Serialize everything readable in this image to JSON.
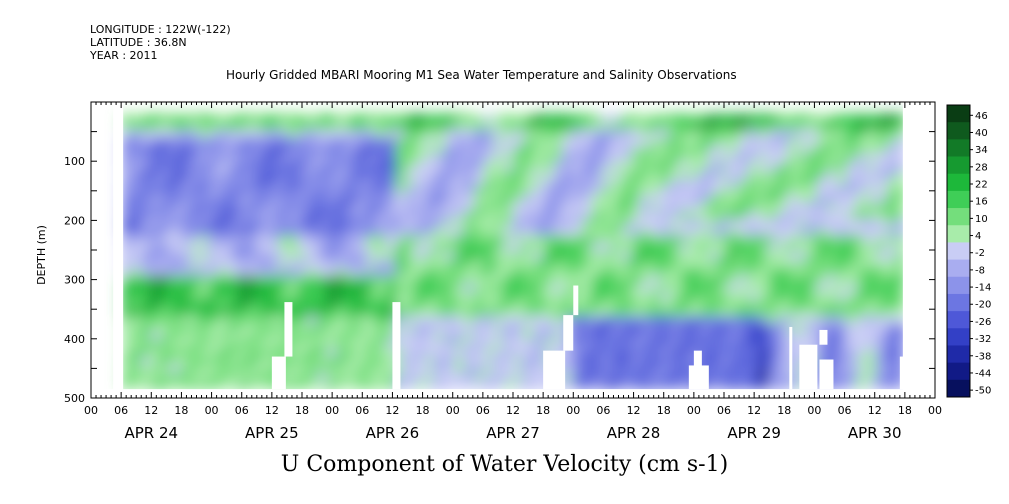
{
  "header": {
    "longitude": "LONGITUDE : 122W(-122)",
    "latitude": "LATITUDE : 36.8N",
    "year": "YEAR : 2011"
  },
  "title": "Hourly Gridded MBARI Mooring M1 Sea Water Temperature and Salinity Observations",
  "bottom_title": "U Component of Water Velocity (cm s-1)",
  "chart_data": {
    "type": "heatmap",
    "title": "Hourly Gridded MBARI Mooring M1 Sea Water Temperature and Salinity Observations",
    "variable": "U Component of Water Velocity (cm s-1)",
    "ylabel": "DEPTH (m)",
    "ylim": [
      500,
      0
    ],
    "y_ticks": [
      100,
      200,
      300,
      400,
      500
    ],
    "x_hour_ticks": [
      "00",
      "06",
      "12",
      "18",
      "00",
      "06",
      "12",
      "18",
      "00",
      "06",
      "12",
      "18",
      "00",
      "06",
      "12",
      "18",
      "00",
      "06",
      "12",
      "18",
      "00",
      "06",
      "12",
      "18",
      "00",
      "06",
      "12",
      "18",
      "00"
    ],
    "x_day_labels": [
      "APR 24",
      "APR 25",
      "APR 26",
      "APR 27",
      "APR 28",
      "APR 29",
      "APR 30"
    ],
    "data_extent": {
      "time_start_hours": 6,
      "time_end_hours": 162,
      "depth_min": 20,
      "depth_max": 485
    },
    "colorbar": {
      "levels": [
        "46",
        "40",
        "34",
        "28",
        "22",
        "16",
        "10",
        "4",
        "-2",
        "-8",
        "-14",
        "-20",
        "-26",
        "-32",
        "-38",
        "-44",
        "-50"
      ],
      "colors": [
        "#0a3d14",
        "#0f5a1e",
        "#127a27",
        "#169a30",
        "#1db83a",
        "#3fce57",
        "#74de7c",
        "#a8ecaa",
        "#c9cdf5",
        "#a9adf0",
        "#8c93ea",
        "#6c76e2",
        "#4e58d8",
        "#3340c6",
        "#1f2aa8",
        "#111a86",
        "#07105e"
      ]
    },
    "columns": [
      {
        "day": 24,
        "upper": "blue",
        "lower": "green",
        "note": "blue 60-300m, green 300-480m"
      },
      {
        "day": 25,
        "upper": "blue",
        "lower": "green",
        "note": "strong blue core near 180m"
      },
      {
        "day": 26,
        "upper": "mixed",
        "lower": "green",
        "note": "green band 250-350m"
      },
      {
        "day": 27,
        "upper": "green",
        "lower": "green",
        "note": "green dominant with blue pockets"
      },
      {
        "day": 28,
        "upper": "mixed",
        "lower": "blue",
        "note": "blue at depth 420-480m"
      },
      {
        "day": 29,
        "upper": "green",
        "lower": "mixed",
        "note": "green 200-350m"
      },
      {
        "day": 30,
        "upper": "green",
        "lower": "mixed",
        "note": "green band near 250m"
      }
    ]
  }
}
